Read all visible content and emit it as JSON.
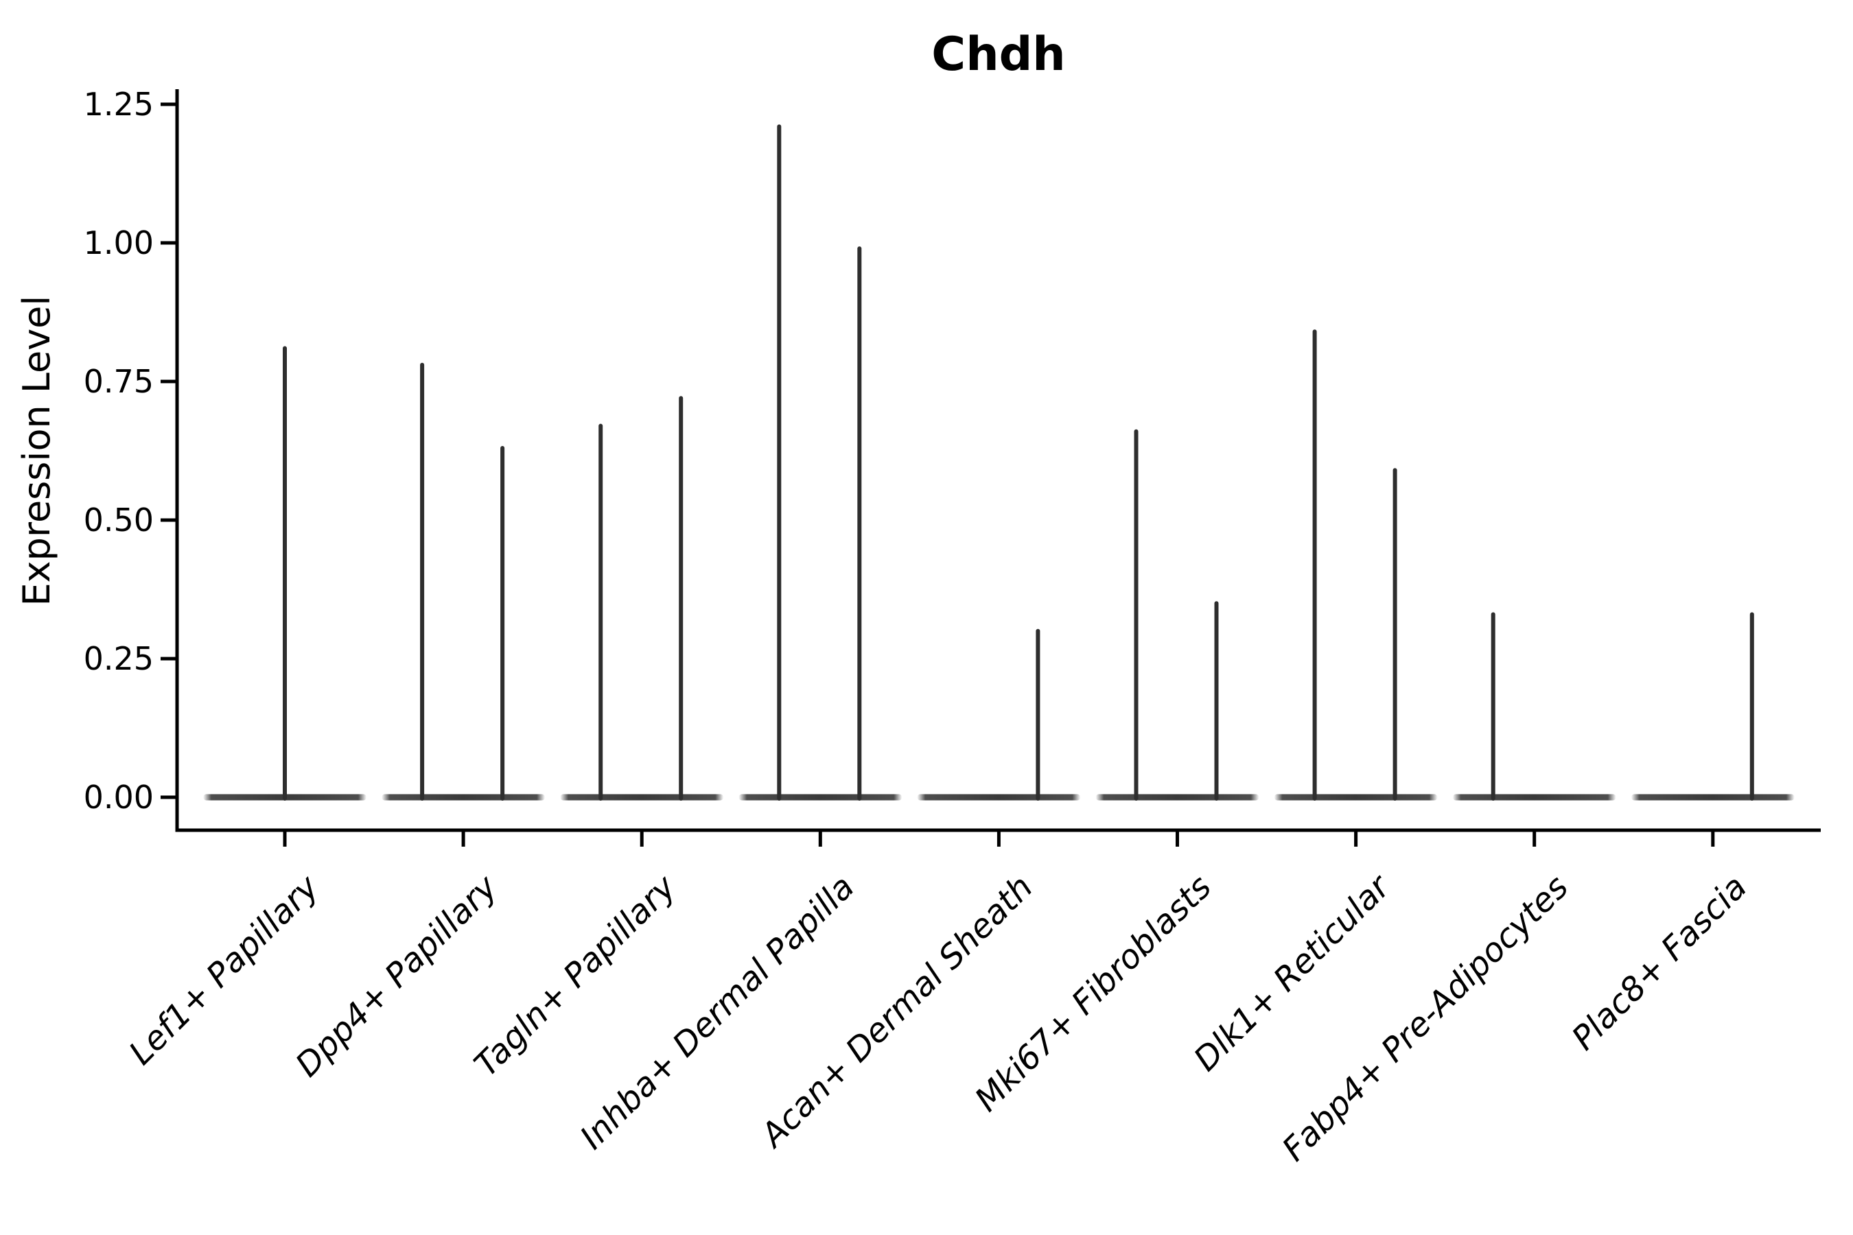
{
  "chart_data": {
    "type": "violin",
    "title": "Chdh",
    "xlabel": "",
    "ylabel": "Expression Level",
    "grid": false,
    "legend_position": "none",
    "ylim": [
      -0.06,
      1.28
    ],
    "yticks": [
      0.0,
      0.25,
      0.5,
      0.75,
      1.0,
      1.25
    ],
    "ytick_labels": [
      "0.00",
      "0.25",
      "0.50",
      "0.75",
      "1.00",
      "1.25"
    ],
    "categories": [
      "Lef1+ Papillary",
      "Dpp4+ Papillary",
      "Tagln+ Papillary",
      "Inhba+ Dermal Papilla",
      "Acan+ Dermal Sheath",
      "Mki67+ Fibroblasts",
      "Dlk1+ Reticular",
      "Fabp4+ Pre-Adipocytes",
      "Plac8+ Fascia"
    ],
    "baseline_value": 0.0,
    "violins": [
      {
        "category": "Lef1+ Papillary",
        "spikes": [
          {
            "slot": "center",
            "max": 0.81
          }
        ]
      },
      {
        "category": "Dpp4+ Papillary",
        "spikes": [
          {
            "slot": "left",
            "max": 0.78
          },
          {
            "slot": "right",
            "max": 0.63
          }
        ]
      },
      {
        "category": "Tagln+ Papillary",
        "spikes": [
          {
            "slot": "left",
            "max": 0.67
          },
          {
            "slot": "right",
            "max": 0.72
          }
        ]
      },
      {
        "category": "Inhba+ Dermal Papilla",
        "spikes": [
          {
            "slot": "left",
            "max": 1.21
          },
          {
            "slot": "right",
            "max": 0.99
          }
        ]
      },
      {
        "category": "Acan+ Dermal Sheath",
        "spikes": [
          {
            "slot": "right",
            "max": 0.3
          }
        ]
      },
      {
        "category": "Mki67+ Fibroblasts",
        "spikes": [
          {
            "slot": "left",
            "max": 0.66
          },
          {
            "slot": "right",
            "max": 0.35
          }
        ]
      },
      {
        "category": "Dlk1+ Reticular",
        "spikes": [
          {
            "slot": "left",
            "max": 0.84
          },
          {
            "slot": "right",
            "max": 0.59
          }
        ]
      },
      {
        "category": "Fabp4+ Pre-Adipocytes",
        "spikes": [
          {
            "slot": "left",
            "max": 0.33
          }
        ]
      },
      {
        "category": "Plac8+ Fascia",
        "spikes": [
          {
            "slot": "right",
            "max": 0.33
          }
        ]
      }
    ],
    "colors": {
      "spike": "#2e2e2e",
      "base": "#3a3a3a",
      "axis": "#000000",
      "text": "#000000",
      "background": "#ffffff"
    }
  }
}
